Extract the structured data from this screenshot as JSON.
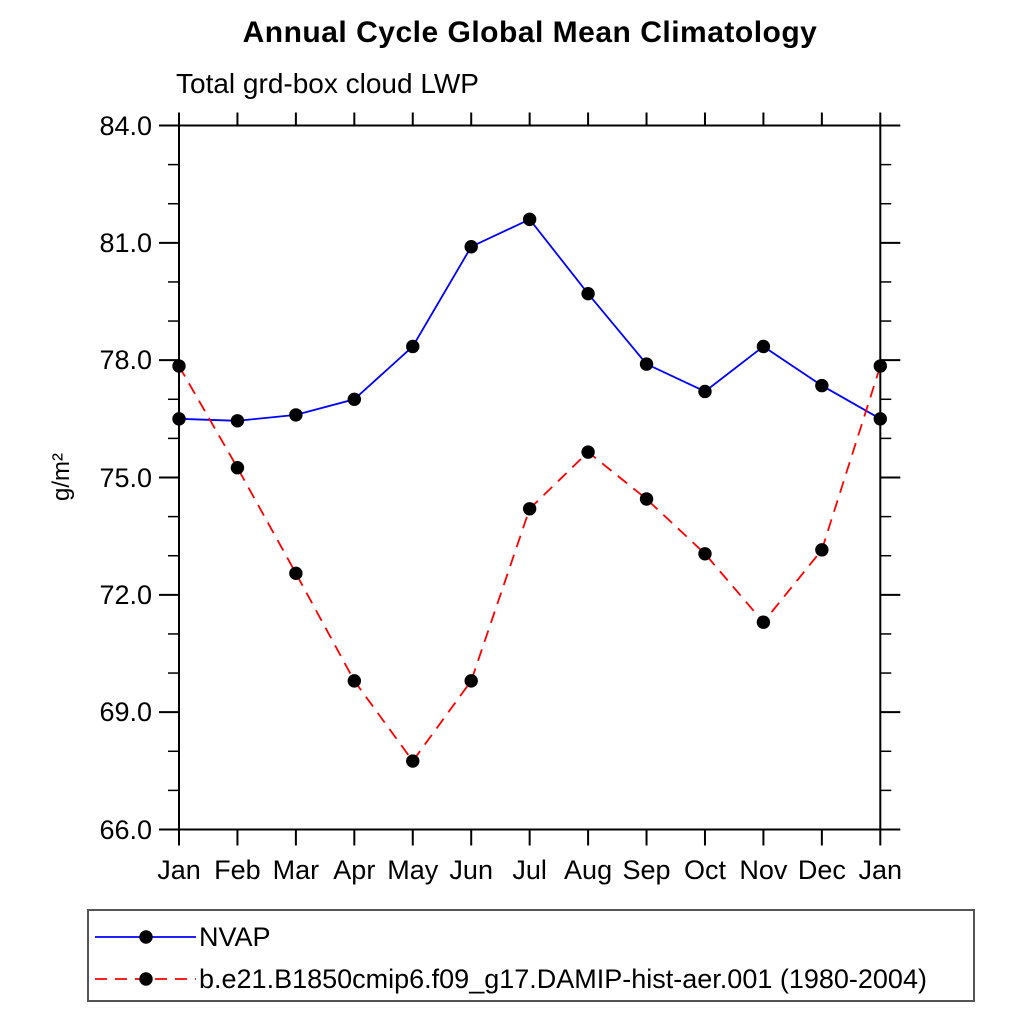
{
  "header": {
    "title": "Annual Cycle Global Mean Climatology",
    "subtitle": "Total grd-box cloud LWP"
  },
  "chart_data": {
    "type": "line",
    "title": "Annual Cycle Global Mean Climatology",
    "subtitle": "Total grd-box cloud LWP",
    "xlabel": "",
    "ylabel": "g/m²",
    "categories": [
      "Jan",
      "Feb",
      "Mar",
      "Apr",
      "May",
      "Jun",
      "Jul",
      "Aug",
      "Sep",
      "Oct",
      "Nov",
      "Dec",
      "Jan"
    ],
    "ylim": [
      66.0,
      84.0
    ],
    "ytick_interval_major": 3.0,
    "ytick_interval_minor": 1.0,
    "ytick_labels": [
      "84.0",
      "81.0",
      "78.0",
      "75.0",
      "72.0",
      "69.0",
      "66.0"
    ],
    "grid": false,
    "legend_position": "bottom-left-box",
    "series": [
      {
        "name": "NVAP",
        "color": "#0000ff",
        "style": "solid",
        "marker": "filled-black-circle",
        "values": [
          76.5,
          76.45,
          76.6,
          77.0,
          78.35,
          80.9,
          81.6,
          79.7,
          77.9,
          77.2,
          78.35,
          77.35,
          76.5
        ]
      },
      {
        "name": "b.e21.B1850cmip6.f09_g17.DAMIP-hist-aer.001 (1980-2004)",
        "color": "#ff0000",
        "style": "dashed",
        "marker": "filled-black-circle",
        "values": [
          77.85,
          75.25,
          72.55,
          69.8,
          67.75,
          69.8,
          74.2,
          75.65,
          74.45,
          73.05,
          71.3,
          73.15,
          77.85
        ]
      }
    ],
    "colors": {
      "axis": "#000000",
      "marker": "#000000",
      "background": "#ffffff"
    }
  }
}
